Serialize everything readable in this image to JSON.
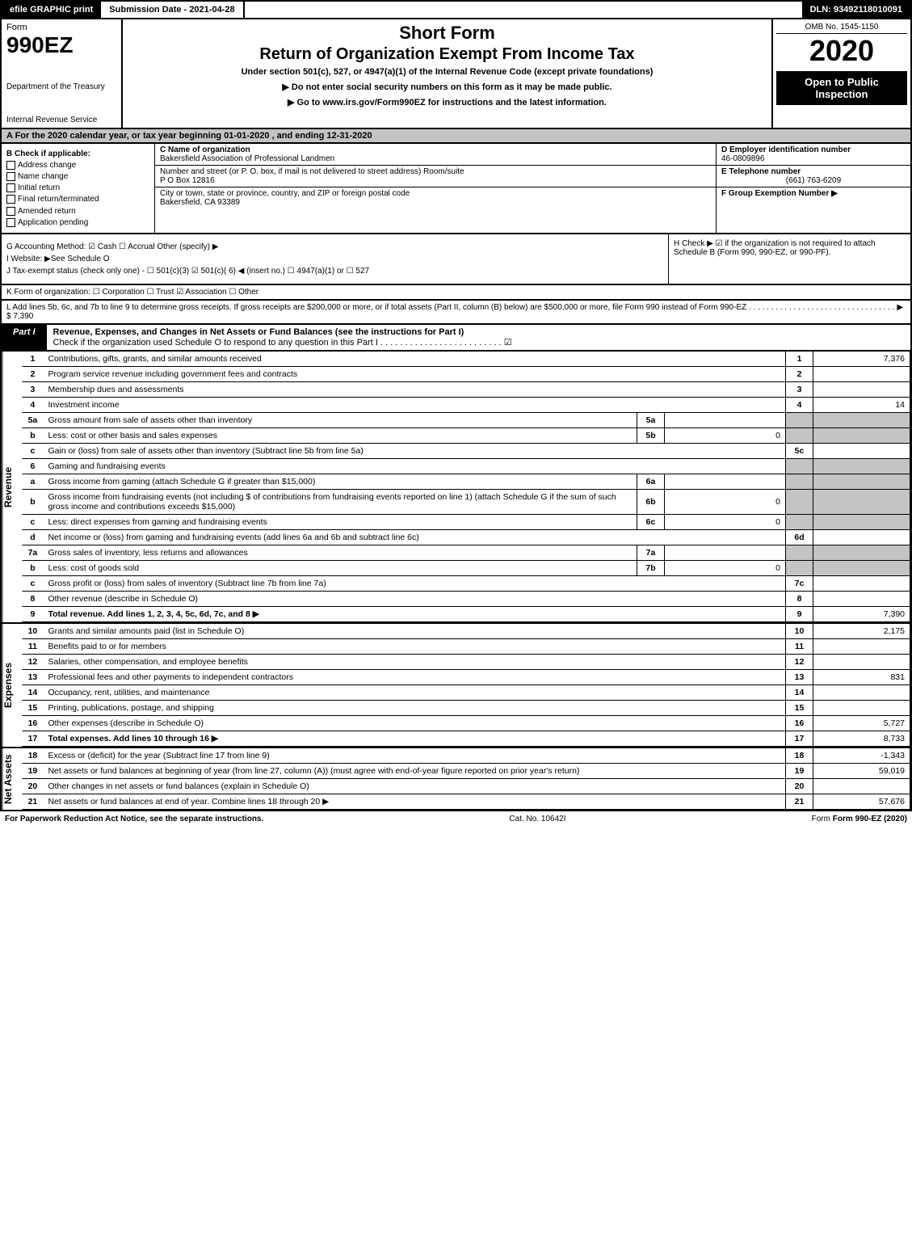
{
  "topbar": {
    "efile": "efile GRAPHIC print",
    "submission": "Submission Date - 2021-04-28",
    "dln": "DLN: 93492118010091"
  },
  "header": {
    "form_word": "Form",
    "form_num": "990EZ",
    "dept": "Department of the Treasury",
    "irs": "Internal Revenue Service",
    "title1": "Short Form",
    "title2": "Return of Organization Exempt From Income Tax",
    "sub": "Under section 501(c), 527, or 4947(a)(1) of the Internal Revenue Code (except private foundations)",
    "warn": "▶ Do not enter social security numbers on this form as it may be made public.",
    "goto": "▶ Go to www.irs.gov/Form990EZ for instructions and the latest information.",
    "omb": "OMB No. 1545-1150",
    "year": "2020",
    "public": "Open to Public Inspection"
  },
  "rowA": "A For the 2020 calendar year, or tax year beginning 01-01-2020 , and ending 12-31-2020",
  "boxB": {
    "title": "B Check if applicable:",
    "items": [
      "Address change",
      "Name change",
      "Initial return",
      "Final return/terminated",
      "Amended return",
      "Application pending"
    ]
  },
  "boxC": {
    "label_name": "C Name of organization",
    "name": "Bakersfield Association of Professional Landmen",
    "label_addr": "Number and street (or P. O. box, if mail is not delivered to street address)      Room/suite",
    "addr": "P O Box 12816",
    "label_city": "City or town, state or province, country, and ZIP or foreign postal code",
    "city": "Bakersfield, CA  93389"
  },
  "boxD": {
    "label": "D Employer identification number",
    "value": "46-0809896"
  },
  "boxE": {
    "label": "E Telephone number",
    "value": "(661) 763-6209"
  },
  "boxF": {
    "label": "F Group Exemption Number  ▶",
    "value": ""
  },
  "rowG": {
    "g": "G Accounting Method:  ☑ Cash  ☐ Accrual  Other (specify) ▶",
    "i": "I Website: ▶See Schedule O",
    "j": "J Tax-exempt status (check only one) - ☐ 501(c)(3) ☑ 501(c)( 6) ◀ (insert no.) ☐ 4947(a)(1) or ☐ 527",
    "h": "H Check ▶ ☑ if the organization is not required to attach Schedule B (Form 990, 990-EZ, or 990-PF)."
  },
  "rowK": "K Form of organization:  ☐ Corporation  ☐ Trust  ☑ Association  ☐ Other",
  "rowL": "L Add lines 5b, 6c, and 7b to line 9 to determine gross receipts. If gross receipts are $200,000 or more, or if total assets (Part II, column (B) below) are $500,000 or more, file Form 990 instead of Form 990-EZ . . . . . . . . . . . . . . . . . . . . . . . . . . . . . . . . . ▶ $ 7,390",
  "part1": {
    "tag": "Part I",
    "title": "Revenue, Expenses, and Changes in Net Assets or Fund Balances (see the instructions for Part I)",
    "check_line": "Check if the organization used Schedule O to respond to any question in this Part I . . . . . . . . . . . . . . . . . . . . . . . . . ☑",
    "sections": {
      "revenue_label": "Revenue",
      "expenses_label": "Expenses",
      "netassets_label": "Net Assets"
    },
    "lines": [
      {
        "n": "1",
        "desc": "Contributions, gifts, grants, and similar amounts received",
        "rn": "1",
        "rv": "7,376"
      },
      {
        "n": "2",
        "desc": "Program service revenue including government fees and contracts",
        "rn": "2",
        "rv": ""
      },
      {
        "n": "3",
        "desc": "Membership dues and assessments",
        "rn": "3",
        "rv": ""
      },
      {
        "n": "4",
        "desc": "Investment income",
        "rn": "4",
        "rv": "14"
      },
      {
        "n": "5a",
        "desc": "Gross amount from sale of assets other than inventory",
        "mn": "5a",
        "mv": "",
        "rn": "",
        "rv": "",
        "shade": true
      },
      {
        "n": "b",
        "desc": "Less: cost or other basis and sales expenses",
        "mn": "5b",
        "mv": "0",
        "rn": "",
        "rv": "",
        "shade": true
      },
      {
        "n": "c",
        "desc": "Gain or (loss) from sale of assets other than inventory (Subtract line 5b from line 5a)",
        "rn": "5c",
        "rv": ""
      },
      {
        "n": "6",
        "desc": "Gaming and fundraising events",
        "rn": "",
        "rv": "",
        "shade": true,
        "noborder": true
      },
      {
        "n": "a",
        "desc": "Gross income from gaming (attach Schedule G if greater than $15,000)",
        "mn": "6a",
        "mv": "",
        "rn": "",
        "rv": "",
        "shade": true
      },
      {
        "n": "b",
        "desc": "Gross income from fundraising events (not including $            of contributions from fundraising events reported on line 1) (attach Schedule G if the sum of such gross income and contributions exceeds $15,000)",
        "mn": "6b",
        "mv": "0",
        "rn": "",
        "rv": "",
        "shade": true
      },
      {
        "n": "c",
        "desc": "Less: direct expenses from gaming and fundraising events",
        "mn": "6c",
        "mv": "0",
        "rn": "",
        "rv": "",
        "shade": true
      },
      {
        "n": "d",
        "desc": "Net income or (loss) from gaming and fundraising events (add lines 6a and 6b and subtract line 6c)",
        "rn": "6d",
        "rv": ""
      },
      {
        "n": "7a",
        "desc": "Gross sales of inventory, less returns and allowances",
        "mn": "7a",
        "mv": "",
        "rn": "",
        "rv": "",
        "shade": true
      },
      {
        "n": "b",
        "desc": "Less: cost of goods sold",
        "mn": "7b",
        "mv": "0",
        "rn": "",
        "rv": "",
        "shade": true
      },
      {
        "n": "c",
        "desc": "Gross profit or (loss) from sales of inventory (Subtract line 7b from line 7a)",
        "rn": "7c",
        "rv": ""
      },
      {
        "n": "8",
        "desc": "Other revenue (describe in Schedule O)",
        "rn": "8",
        "rv": ""
      },
      {
        "n": "9",
        "desc": "Total revenue. Add lines 1, 2, 3, 4, 5c, 6d, 7c, and 8",
        "rn": "9",
        "rv": "7,390",
        "bold": true,
        "arrow": true
      }
    ],
    "expense_lines": [
      {
        "n": "10",
        "desc": "Grants and similar amounts paid (list in Schedule O)",
        "rn": "10",
        "rv": "2,175"
      },
      {
        "n": "11",
        "desc": "Benefits paid to or for members",
        "rn": "11",
        "rv": ""
      },
      {
        "n": "12",
        "desc": "Salaries, other compensation, and employee benefits",
        "rn": "12",
        "rv": ""
      },
      {
        "n": "13",
        "desc": "Professional fees and other payments to independent contractors",
        "rn": "13",
        "rv": "831"
      },
      {
        "n": "14",
        "desc": "Occupancy, rent, utilities, and maintenance",
        "rn": "14",
        "rv": ""
      },
      {
        "n": "15",
        "desc": "Printing, publications, postage, and shipping",
        "rn": "15",
        "rv": ""
      },
      {
        "n": "16",
        "desc": "Other expenses (describe in Schedule O)",
        "rn": "16",
        "rv": "5,727"
      },
      {
        "n": "17",
        "desc": "Total expenses. Add lines 10 through 16",
        "rn": "17",
        "rv": "8,733",
        "bold": true,
        "arrow": true
      }
    ],
    "net_lines": [
      {
        "n": "18",
        "desc": "Excess or (deficit) for the year (Subtract line 17 from line 9)",
        "rn": "18",
        "rv": "-1,343"
      },
      {
        "n": "19",
        "desc": "Net assets or fund balances at beginning of year (from line 27, column (A)) (must agree with end-of-year figure reported on prior year's return)",
        "rn": "19",
        "rv": "59,019"
      },
      {
        "n": "20",
        "desc": "Other changes in net assets or fund balances (explain in Schedule O)",
        "rn": "20",
        "rv": ""
      },
      {
        "n": "21",
        "desc": "Net assets or fund balances at end of year. Combine lines 18 through 20",
        "rn": "21",
        "rv": "57,676",
        "arrow": true
      }
    ]
  },
  "footer": {
    "left": "For Paperwork Reduction Act Notice, see the separate instructions.",
    "mid": "Cat. No. 10642I",
    "right": "Form 990-EZ (2020)"
  }
}
